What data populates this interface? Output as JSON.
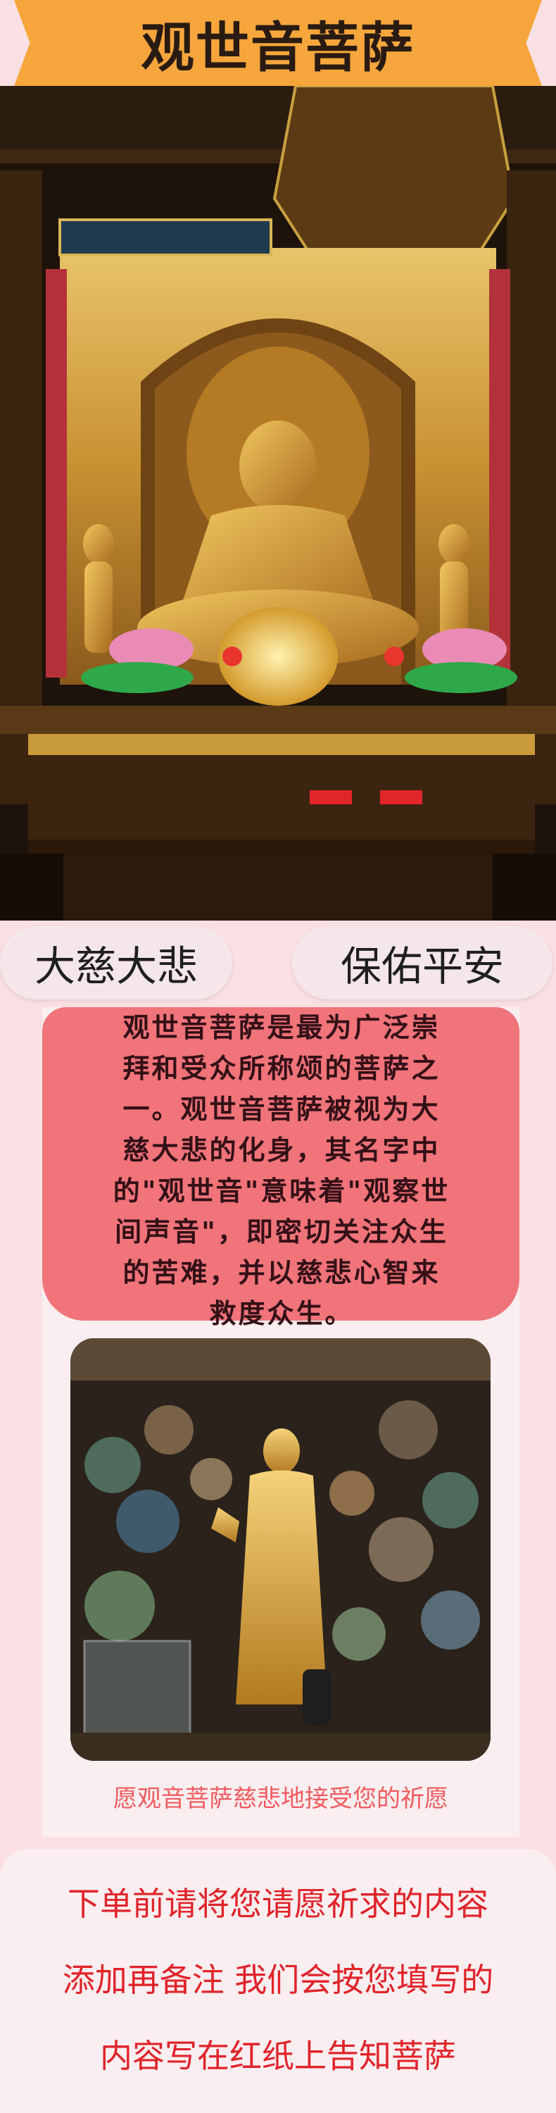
{
  "title": "观世音菩萨",
  "tags": {
    "left": "大慈大悲",
    "right": "保佑平安"
  },
  "description_lines": [
    "观世音菩萨是最为广泛崇",
    "拜和受众所称颂的菩萨之",
    "一。观世音菩萨被视为大",
    "慈大悲的化身，其名字中",
    "的\"观世音\"意味着\"观察世",
    "间声音\"，即密切关注众生",
    "的苦难，并以慈悲心智来",
    "救度众生。"
  ],
  "caption": "愿观音菩萨慈悲地接受您的祈愿",
  "note_lines": [
    "下单前请将您请愿祈求的内容",
    "添加再备注 我们会按您填写的",
    "内容写在红纸上告知菩萨"
  ],
  "colors": {
    "background": "#fbe0e3",
    "banner": "#f6a63c",
    "desc_box": "#f0747a",
    "caption": "#ef5c5f",
    "note": "#e0232a"
  }
}
